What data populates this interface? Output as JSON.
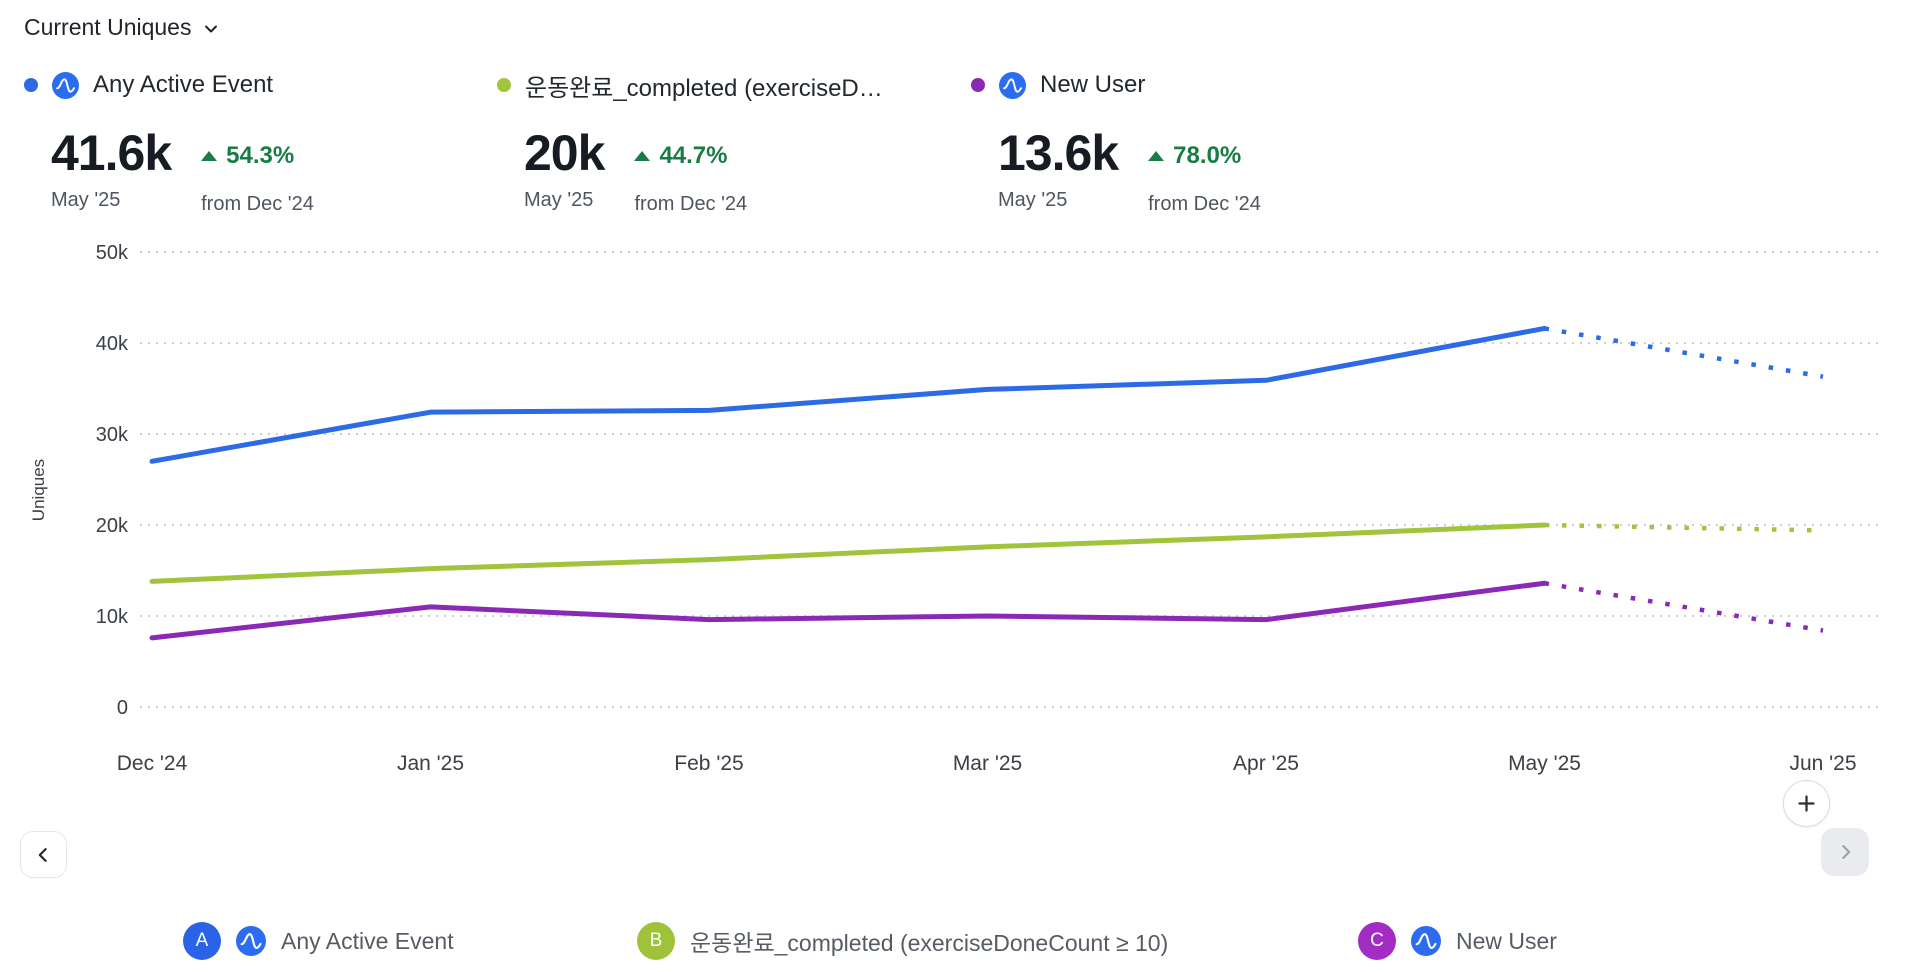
{
  "header": {
    "title": "Current Uniques"
  },
  "colors": {
    "blue": "#2c6be5",
    "green": "#a0c53c",
    "purple": "#8a29b5",
    "badge_blue": "#2a63e6",
    "badge_green": "#9fc23b",
    "badge_purple": "#a32cc4",
    "amp_blue": "#2b6cf0",
    "positive": "#177d42"
  },
  "metrics": [
    {
      "letter": "A",
      "title": "Any Active Event",
      "value": "41.6k",
      "delta": "54.3%",
      "period": "May '25",
      "compare": "from Dec '24",
      "has_amp_icon": true
    },
    {
      "letter": "B",
      "title": "운동완료_completed (exerciseD…",
      "value": "20k",
      "delta": "44.7%",
      "period": "May '25",
      "compare": "from Dec '24",
      "has_amp_icon": false
    },
    {
      "letter": "C",
      "title": "New User",
      "value": "13.6k",
      "delta": "78.0%",
      "period": "May '25",
      "compare": "from Dec '24",
      "has_amp_icon": true
    }
  ],
  "chart_data": {
    "type": "line",
    "x": [
      "Dec '24",
      "Jan '25",
      "Feb '25",
      "Mar '25",
      "Apr '25",
      "May '25",
      "Jun '25"
    ],
    "ylabel": "Uniques",
    "ylim": [
      0,
      50000
    ],
    "yticks": [
      "0",
      "10k",
      "20k",
      "30k",
      "40k",
      "50k"
    ],
    "grid": "horizontal-dotted",
    "grid_color": "#c9cfd7",
    "legend_position": "bottom",
    "projection_from_index": 5,
    "series": [
      {
        "name": "Any Active Event",
        "color": "#2c6be5",
        "values": [
          27000,
          32400,
          32600,
          34900,
          35900,
          41600,
          36300
        ]
      },
      {
        "name": "운동완료_completed (exerciseDoneCount ≥ 10)",
        "color": "#a0c53c",
        "values": [
          13800,
          15200,
          16200,
          17600,
          18700,
          20000,
          19400
        ]
      },
      {
        "name": "New User",
        "color": "#8a29b5",
        "values": [
          7600,
          11000,
          9600,
          10000,
          9600,
          13600,
          8400
        ]
      }
    ]
  },
  "legend": [
    {
      "letter": "A",
      "label": "Any Active Event",
      "has_amp_icon": true
    },
    {
      "letter": "B",
      "label": "운동완료_completed (exerciseDoneCount ≥ 10)",
      "has_amp_icon": false
    },
    {
      "letter": "C",
      "label": "New User",
      "has_amp_icon": true
    }
  ],
  "controls": {
    "plus": "+"
  }
}
